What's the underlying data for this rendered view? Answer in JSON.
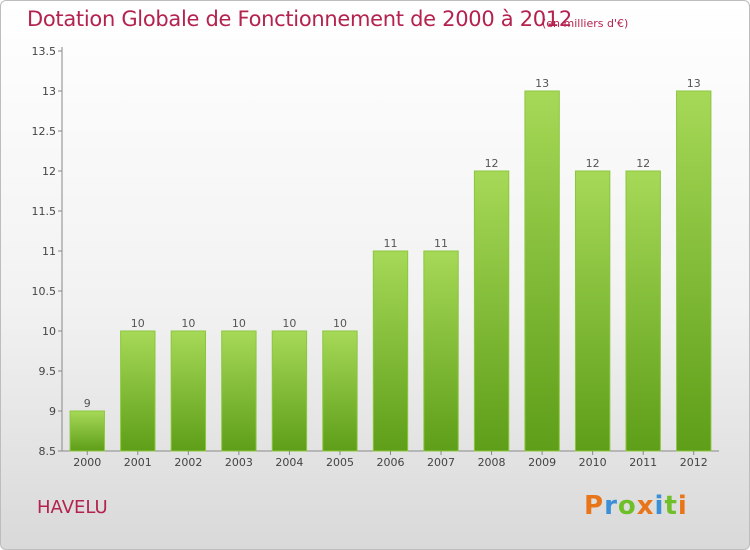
{
  "header": {
    "title": "Dotation Globale de Fonctionnement de 2000 à 2012",
    "subtitle": "(en milliers d'€)"
  },
  "footer": {
    "place": "HAVELU",
    "logo": "Proxiti",
    "logo_colors": [
      "#e8751a",
      "#3a8fd6",
      "#6fbf2a",
      "#e8751a",
      "#3a8fd6",
      "#6fbf2a",
      "#e8751a"
    ]
  },
  "colors": {
    "bar_top": "#a6d957",
    "bar_bottom": "#5e9e18",
    "title": "#b4224e"
  },
  "chart_data": {
    "type": "bar",
    "categories": [
      "2000",
      "2001",
      "2002",
      "2003",
      "2004",
      "2005",
      "2006",
      "2007",
      "2008",
      "2009",
      "2010",
      "2011",
      "2012"
    ],
    "values": [
      9,
      10,
      10,
      10,
      10,
      10,
      11,
      11,
      12,
      13,
      12,
      12,
      13
    ],
    "value_labels": [
      "9",
      "10",
      "10",
      "10",
      "10",
      "10",
      "11",
      "11",
      "12",
      "13",
      "12",
      "12",
      "13"
    ],
    "yticks": [
      8.5,
      9,
      9.5,
      10,
      10.5,
      11,
      11.5,
      12,
      12.5,
      13,
      13.5
    ],
    "ytick_labels": [
      "8.5",
      "9",
      "9.5",
      "10",
      "10.5",
      "11",
      "11.5",
      "12",
      "12.5",
      "13",
      "13.5"
    ],
    "ylim": [
      8.5,
      13.5
    ],
    "grid": false,
    "xlabel": "",
    "ylabel": ""
  }
}
